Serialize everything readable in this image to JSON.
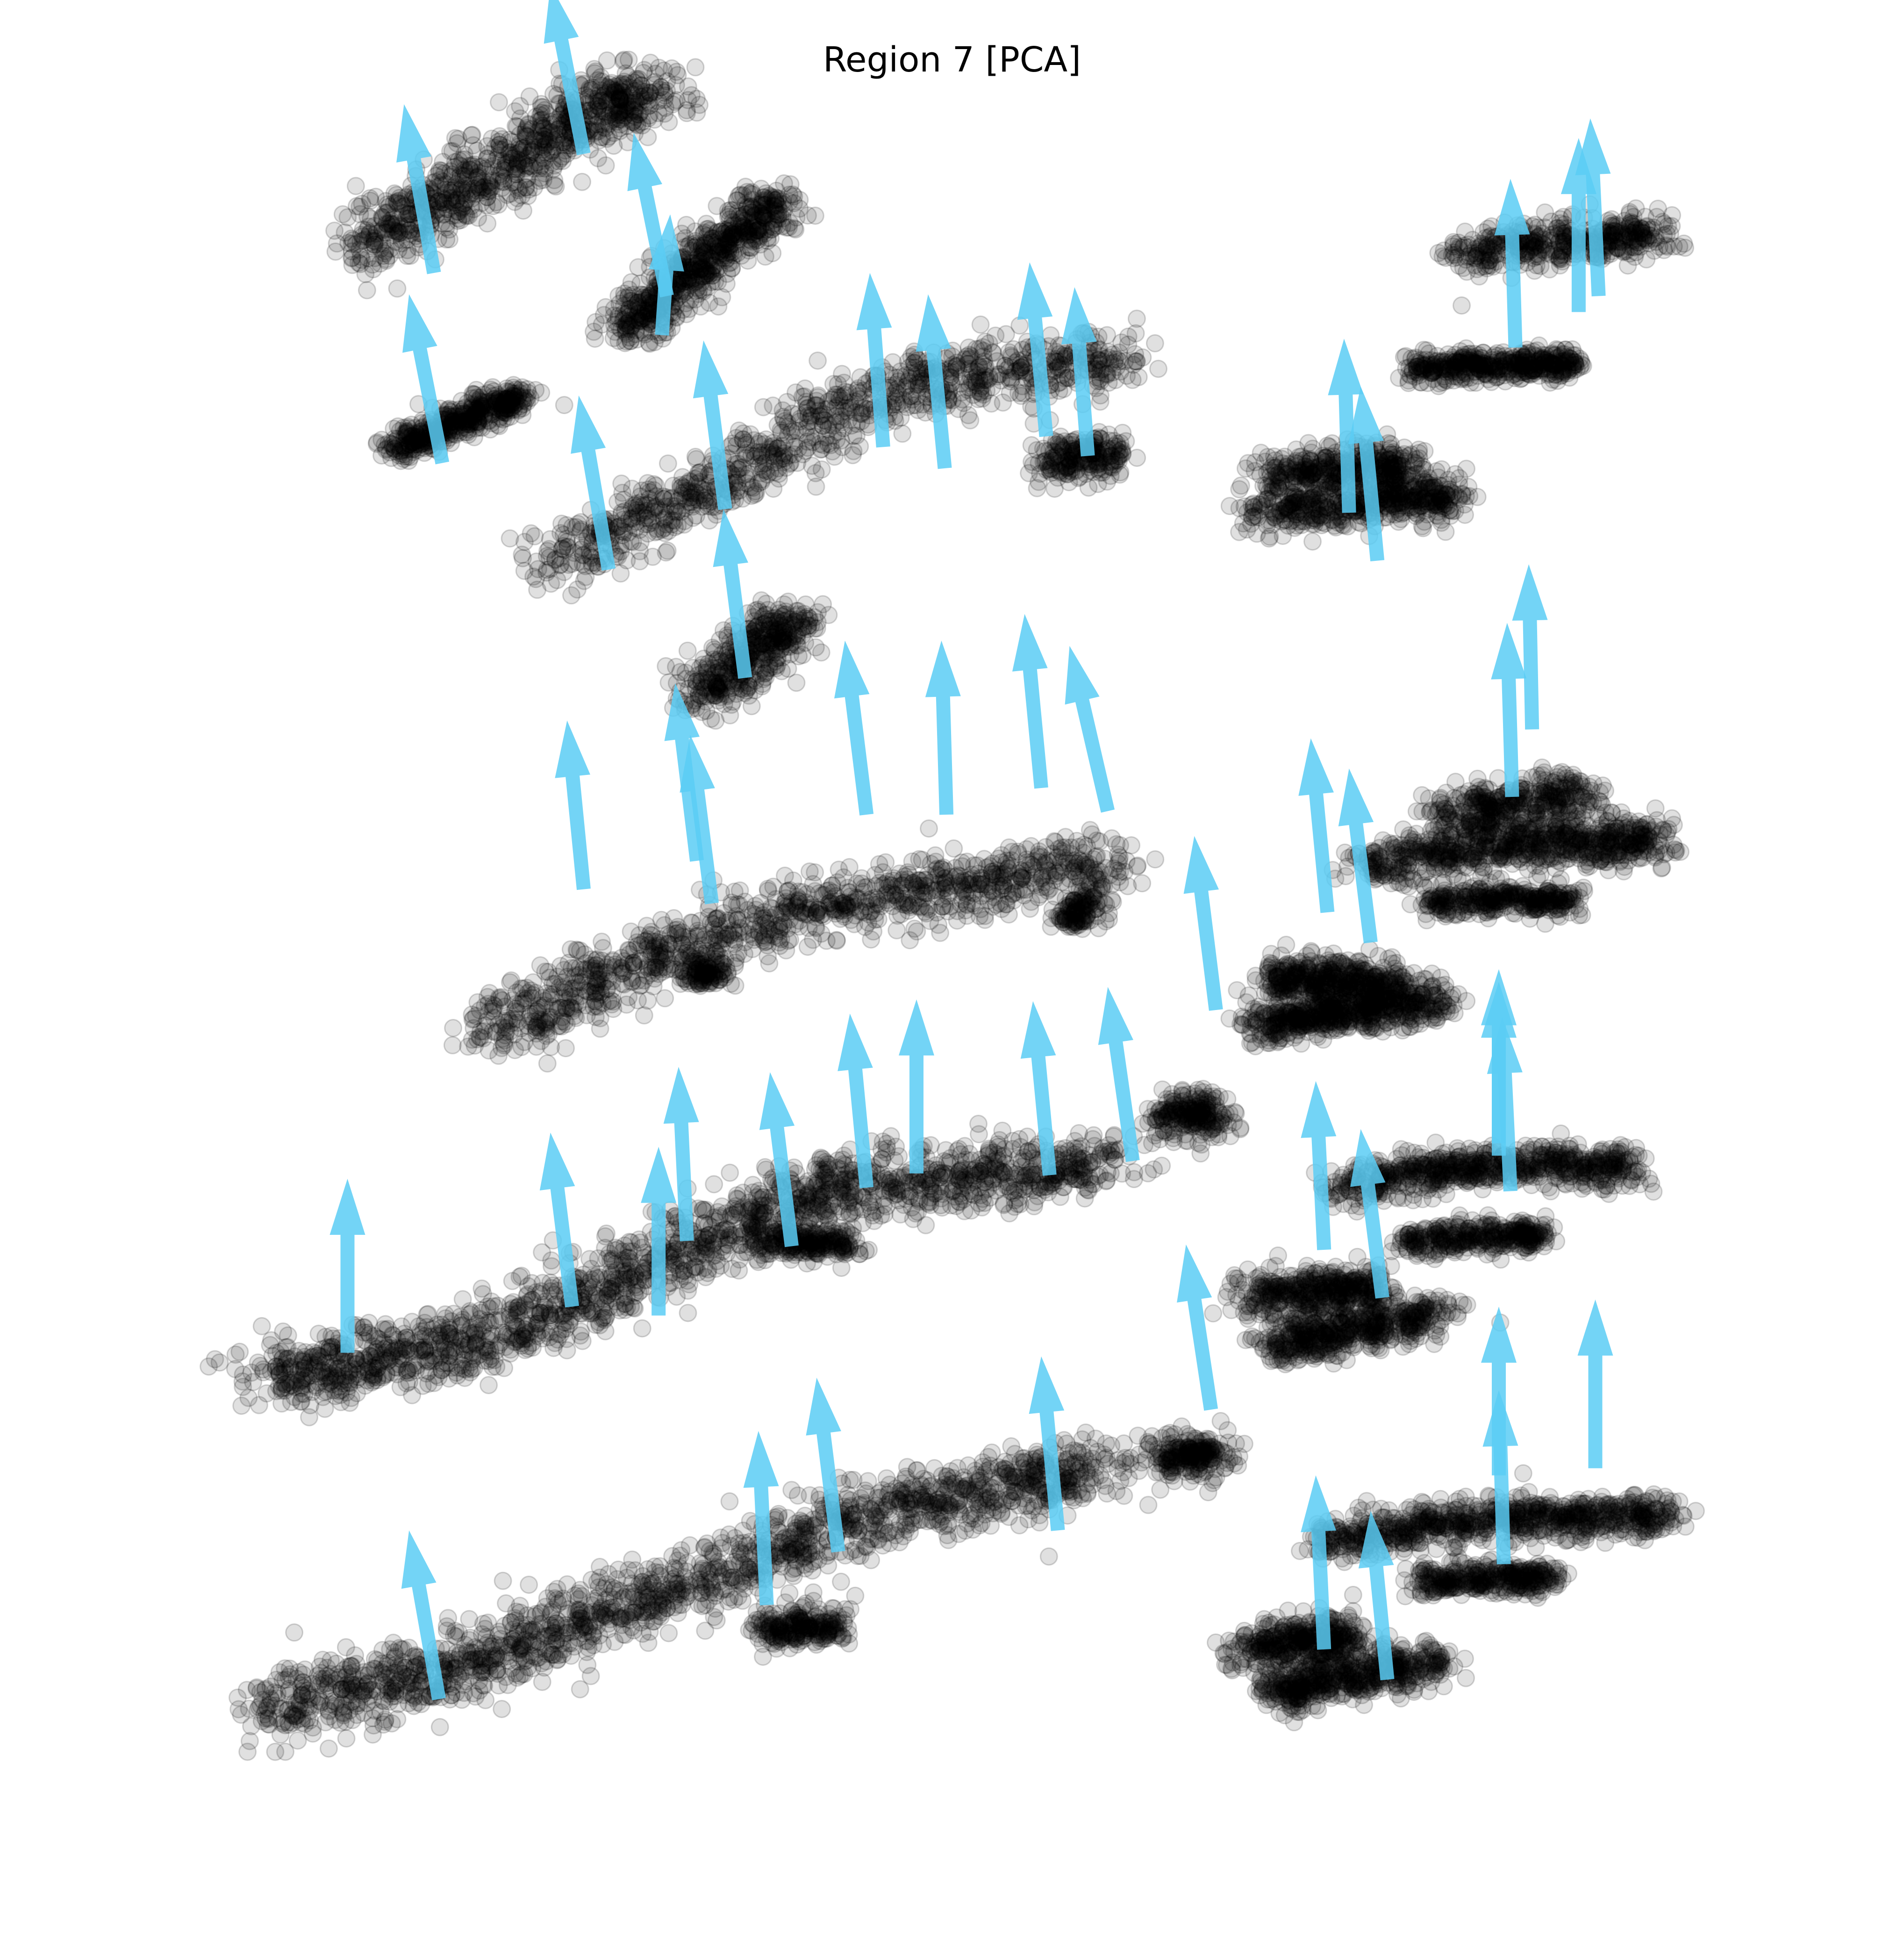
{
  "chart_data": {
    "type": "scatter",
    "title": "Region 7 [PCA]",
    "xlabel": "",
    "ylabel": "",
    "axes_visible": false,
    "grid": false,
    "legend": "none",
    "colors": {
      "points": "#000000",
      "arrows": "#5bcdf5"
    },
    "point_alpha": 0.12,
    "xlim": [
      0,
      1
    ],
    "ylim": [
      0,
      1
    ],
    "clusters": [
      {
        "name": "a1",
        "points": [
          [
            0.145,
            0.91
          ],
          [
            0.165,
            0.925
          ],
          [
            0.19,
            0.935
          ],
          [
            0.215,
            0.948
          ],
          [
            0.24,
            0.96
          ],
          [
            0.262,
            0.975
          ],
          [
            0.28,
            0.985
          ],
          [
            0.3,
            0.992
          ],
          [
            0.318,
            0.998
          ]
        ],
        "spread": 0.016
      },
      {
        "name": "a2",
        "points": [
          [
            0.3,
            0.862
          ],
          [
            0.315,
            0.875
          ],
          [
            0.33,
            0.888
          ],
          [
            0.345,
            0.9
          ],
          [
            0.36,
            0.912
          ],
          [
            0.378,
            0.925
          ],
          [
            0.392,
            0.937
          ]
        ],
        "spread": 0.011
      },
      {
        "name": "a3",
        "points": [
          [
            0.16,
            0.795
          ],
          [
            0.18,
            0.803
          ],
          [
            0.2,
            0.812
          ],
          [
            0.222,
            0.82
          ],
          [
            0.238,
            0.825
          ]
        ],
        "spread": 0.007
      },
      {
        "name": "a4",
        "points": [
          [
            0.255,
            0.732
          ],
          [
            0.29,
            0.748
          ],
          [
            0.33,
            0.765
          ],
          [
            0.37,
            0.782
          ],
          [
            0.405,
            0.805
          ],
          [
            0.44,
            0.822
          ],
          [
            0.48,
            0.833
          ],
          [
            0.52,
            0.84
          ],
          [
            0.56,
            0.843
          ],
          [
            0.6,
            0.848
          ]
        ],
        "spread": 0.015
      },
      {
        "name": "a5",
        "points": [
          [
            0.555,
            0.788
          ],
          [
            0.575,
            0.79
          ],
          [
            0.59,
            0.795
          ]
        ],
        "spread": 0.01
      },
      {
        "name": "a6",
        "points": [
          [
            0.68,
            0.76
          ],
          [
            0.71,
            0.762
          ],
          [
            0.74,
            0.765
          ],
          [
            0.77,
            0.768
          ],
          [
            0.8,
            0.768
          ],
          [
            0.69,
            0.782
          ],
          [
            0.72,
            0.785
          ],
          [
            0.75,
            0.788
          ],
          [
            0.775,
            0.783
          ]
        ],
        "spread": 0.01
      },
      {
        "name": "a7",
        "points": [
          [
            0.775,
            0.84
          ],
          [
            0.8,
            0.842
          ],
          [
            0.825,
            0.843
          ],
          [
            0.85,
            0.844
          ],
          [
            0.87,
            0.844
          ]
        ],
        "spread": 0.007
      },
      {
        "name": "a8",
        "points": [
          [
            0.805,
            0.905
          ],
          [
            0.835,
            0.91
          ],
          [
            0.865,
            0.913
          ],
          [
            0.895,
            0.915
          ],
          [
            0.925,
            0.917
          ]
        ],
        "spread": 0.01
      },
      {
        "name": "a9",
        "points": [
          [
            0.345,
            0.655
          ],
          [
            0.36,
            0.668
          ],
          [
            0.375,
            0.68
          ],
          [
            0.39,
            0.692
          ],
          [
            0.4,
            0.7
          ]
        ],
        "spread": 0.012
      },
      {
        "name": "b1",
        "points": [
          [
            0.215,
            0.465
          ],
          [
            0.25,
            0.482
          ],
          [
            0.285,
            0.495
          ],
          [
            0.32,
            0.51
          ],
          [
            0.36,
            0.525
          ],
          [
            0.4,
            0.535
          ],
          [
            0.44,
            0.542
          ],
          [
            0.48,
            0.546
          ],
          [
            0.52,
            0.552
          ],
          [
            0.56,
            0.558
          ],
          [
            0.59,
            0.562
          ]
        ],
        "spread": 0.015
      },
      {
        "name": "b2",
        "points": [
          [
            0.34,
            0.503
          ],
          [
            0.355,
            0.5
          ]
        ],
        "spread": 0.007
      },
      {
        "name": "b3",
        "points": [
          [
            0.565,
            0.532
          ],
          [
            0.58,
            0.537
          ]
        ],
        "spread": 0.007
      },
      {
        "name": "b4",
        "points": [
          [
            0.625,
            0.415
          ],
          [
            0.64,
            0.425
          ],
          [
            0.655,
            0.415
          ]
        ],
        "spread": 0.01
      },
      {
        "name": "b5",
        "points": [
          [
            0.68,
            0.47
          ],
          [
            0.7,
            0.475
          ],
          [
            0.72,
            0.478
          ],
          [
            0.74,
            0.48
          ],
          [
            0.76,
            0.482
          ],
          [
            0.79,
            0.484
          ],
          [
            0.69,
            0.496
          ],
          [
            0.71,
            0.498
          ],
          [
            0.735,
            0.5
          ],
          [
            0.76,
            0.496
          ]
        ],
        "spread": 0.01
      },
      {
        "name": "b6",
        "points": [
          [
            0.745,
            0.56
          ],
          [
            0.775,
            0.565
          ],
          [
            0.805,
            0.57
          ],
          [
            0.835,
            0.573
          ],
          [
            0.865,
            0.573
          ],
          [
            0.895,
            0.575
          ],
          [
            0.92,
            0.575
          ],
          [
            0.79,
            0.59
          ],
          [
            0.82,
            0.595
          ],
          [
            0.85,
            0.6
          ],
          [
            0.88,
            0.6
          ]
        ],
        "spread": 0.011
      },
      {
        "name": "b7",
        "points": [
          [
            0.785,
            0.54
          ],
          [
            0.815,
            0.543
          ],
          [
            0.845,
            0.543
          ],
          [
            0.87,
            0.54
          ]
        ],
        "spread": 0.007
      },
      {
        "name": "c1",
        "points": [
          [
            0.085,
            0.275
          ],
          [
            0.11,
            0.275
          ],
          [
            0.14,
            0.28
          ],
          [
            0.175,
            0.29
          ],
          [
            0.205,
            0.292
          ],
          [
            0.24,
            0.305
          ],
          [
            0.27,
            0.318
          ],
          [
            0.3,
            0.33
          ],
          [
            0.33,
            0.342
          ],
          [
            0.36,
            0.355
          ],
          [
            0.39,
            0.37
          ],
          [
            0.42,
            0.378
          ],
          [
            0.455,
            0.382
          ],
          [
            0.49,
            0.385
          ],
          [
            0.525,
            0.388
          ],
          [
            0.56,
            0.39
          ],
          [
            0.59,
            0.393
          ]
        ],
        "spread": 0.016
      },
      {
        "name": "c2",
        "points": [
          [
            0.385,
            0.348
          ],
          [
            0.41,
            0.35
          ],
          [
            0.435,
            0.347
          ]
        ],
        "spread": 0.008
      },
      {
        "name": "c3",
        "points": [
          [
            0.625,
            0.225
          ],
          [
            0.64,
            0.232
          ],
          [
            0.655,
            0.225
          ]
        ],
        "spread": 0.01
      },
      {
        "name": "c4",
        "points": [
          [
            0.675,
            0.318
          ],
          [
            0.7,
            0.322
          ],
          [
            0.725,
            0.324
          ],
          [
            0.75,
            0.326
          ],
          [
            0.69,
            0.29
          ],
          [
            0.715,
            0.295
          ],
          [
            0.74,
            0.3
          ],
          [
            0.765,
            0.305
          ],
          [
            0.79,
            0.31
          ]
        ],
        "spread": 0.01
      },
      {
        "name": "c5",
        "points": [
          [
            0.73,
            0.38
          ],
          [
            0.76,
            0.385
          ],
          [
            0.79,
            0.39
          ],
          [
            0.82,
            0.392
          ],
          [
            0.85,
            0.393
          ],
          [
            0.88,
            0.392
          ],
          [
            0.9,
            0.388
          ]
        ],
        "spread": 0.01
      },
      {
        "name": "c6",
        "points": [
          [
            0.77,
            0.35
          ],
          [
            0.8,
            0.352
          ],
          [
            0.83,
            0.354
          ],
          [
            0.85,
            0.353
          ]
        ],
        "spread": 0.007
      },
      {
        "name": "d1",
        "points": [
          [
            0.085,
            0.085
          ],
          [
            0.115,
            0.092
          ],
          [
            0.15,
            0.1
          ],
          [
            0.185,
            0.105
          ],
          [
            0.215,
            0.115
          ],
          [
            0.25,
            0.128
          ],
          [
            0.285,
            0.14
          ],
          [
            0.32,
            0.15
          ],
          [
            0.355,
            0.162
          ],
          [
            0.39,
            0.175
          ],
          [
            0.425,
            0.188
          ],
          [
            0.46,
            0.198
          ],
          [
            0.495,
            0.205
          ],
          [
            0.53,
            0.212
          ],
          [
            0.56,
            0.218
          ],
          [
            0.59,
            0.222
          ]
        ],
        "spread": 0.016
      },
      {
        "name": "d2",
        "points": [
          [
            0.385,
            0.13
          ],
          [
            0.405,
            0.134
          ],
          [
            0.425,
            0.132
          ]
        ],
        "spread": 0.008
      },
      {
        "name": "d3",
        "points": [
          [
            0.675,
            0.12
          ],
          [
            0.695,
            0.124
          ],
          [
            0.715,
            0.127
          ],
          [
            0.735,
            0.128
          ],
          [
            0.69,
            0.095
          ],
          [
            0.715,
            0.1
          ],
          [
            0.74,
            0.105
          ],
          [
            0.765,
            0.11
          ],
          [
            0.79,
            0.112
          ]
        ],
        "spread": 0.01
      },
      {
        "name": "d4",
        "points": [
          [
            0.72,
            0.18
          ],
          [
            0.75,
            0.185
          ],
          [
            0.78,
            0.19
          ],
          [
            0.81,
            0.193
          ],
          [
            0.84,
            0.194
          ],
          [
            0.87,
            0.194
          ],
          [
            0.9,
            0.194
          ],
          [
            0.925,
            0.196
          ]
        ],
        "spread": 0.01
      },
      {
        "name": "d5",
        "points": [
          [
            0.775,
            0.158
          ],
          [
            0.805,
            0.16
          ],
          [
            0.835,
            0.16
          ],
          [
            0.855,
            0.158
          ]
        ],
        "spread": 0.007
      }
    ],
    "arrows": [
      [
        0.185,
        0.895,
        -0.018,
        0.095
      ],
      [
        0.275,
        0.962,
        -0.02,
        0.095
      ],
      [
        0.19,
        0.788,
        -0.02,
        0.095
      ],
      [
        0.325,
        0.882,
        -0.02,
        0.092
      ],
      [
        0.322,
        0.86,
        0.005,
        0.068
      ],
      [
        0.29,
        0.728,
        -0.018,
        0.098
      ],
      [
        0.36,
        0.762,
        -0.013,
        0.095
      ],
      [
        0.455,
        0.797,
        -0.008,
        0.098
      ],
      [
        0.492,
        0.785,
        -0.01,
        0.098
      ],
      [
        0.553,
        0.803,
        -0.01,
        0.098
      ],
      [
        0.578,
        0.792,
        -0.008,
        0.095
      ],
      [
        0.735,
        0.76,
        -0.003,
        0.098
      ],
      [
        0.752,
        0.733,
        -0.01,
        0.098
      ],
      [
        0.835,
        0.853,
        -0.003,
        0.095
      ],
      [
        0.873,
        0.873,
        0.0,
        0.098
      ],
      [
        0.885,
        0.882,
        -0.005,
        0.1
      ],
      [
        0.372,
        0.667,
        -0.013,
        0.095
      ],
      [
        0.275,
        0.548,
        -0.01,
        0.095
      ],
      [
        0.343,
        0.564,
        -0.013,
        0.1
      ],
      [
        0.352,
        0.54,
        -0.013,
        0.095
      ],
      [
        0.445,
        0.59,
        -0.013,
        0.098
      ],
      [
        0.493,
        0.59,
        -0.003,
        0.098
      ],
      [
        0.55,
        0.605,
        -0.01,
        0.098
      ],
      [
        0.59,
        0.592,
        -0.023,
        0.093
      ],
      [
        0.655,
        0.48,
        -0.013,
        0.098
      ],
      [
        0.722,
        0.535,
        -0.01,
        0.098
      ],
      [
        0.748,
        0.518,
        -0.013,
        0.098
      ],
      [
        0.833,
        0.6,
        -0.003,
        0.098
      ],
      [
        0.845,
        0.638,
        -0.002,
        0.093
      ],
      [
        0.133,
        0.287,
        0.0,
        0.098
      ],
      [
        0.268,
        0.313,
        -0.013,
        0.098
      ],
      [
        0.32,
        0.308,
        0.0,
        0.095
      ],
      [
        0.337,
        0.35,
        -0.005,
        0.098
      ],
      [
        0.4,
        0.347,
        -0.013,
        0.098
      ],
      [
        0.445,
        0.38,
        -0.01,
        0.098
      ],
      [
        0.475,
        0.388,
        0.0,
        0.098
      ],
      [
        0.555,
        0.387,
        -0.01,
        0.098
      ],
      [
        0.605,
        0.395,
        -0.015,
        0.098
      ],
      [
        0.652,
        0.255,
        -0.015,
        0.093
      ],
      [
        0.72,
        0.345,
        -0.005,
        0.095
      ],
      [
        0.755,
        0.318,
        -0.013,
        0.095
      ],
      [
        0.832,
        0.378,
        -0.005,
        0.098
      ],
      [
        0.825,
        0.398,
        0.0,
        0.098
      ],
      [
        0.825,
        0.405,
        0.0,
        0.098
      ],
      [
        0.188,
        0.092,
        -0.018,
        0.095
      ],
      [
        0.385,
        0.145,
        -0.005,
        0.098
      ],
      [
        0.428,
        0.175,
        -0.013,
        0.098
      ],
      [
        0.56,
        0.187,
        -0.01,
        0.098
      ],
      [
        0.72,
        0.12,
        -0.005,
        0.098
      ],
      [
        0.758,
        0.103,
        -0.01,
        0.095
      ],
      [
        0.828,
        0.168,
        -0.003,
        0.098
      ],
      [
        0.825,
        0.218,
        0.0,
        0.095
      ],
      [
        0.883,
        0.222,
        0.0,
        0.095
      ]
    ]
  }
}
